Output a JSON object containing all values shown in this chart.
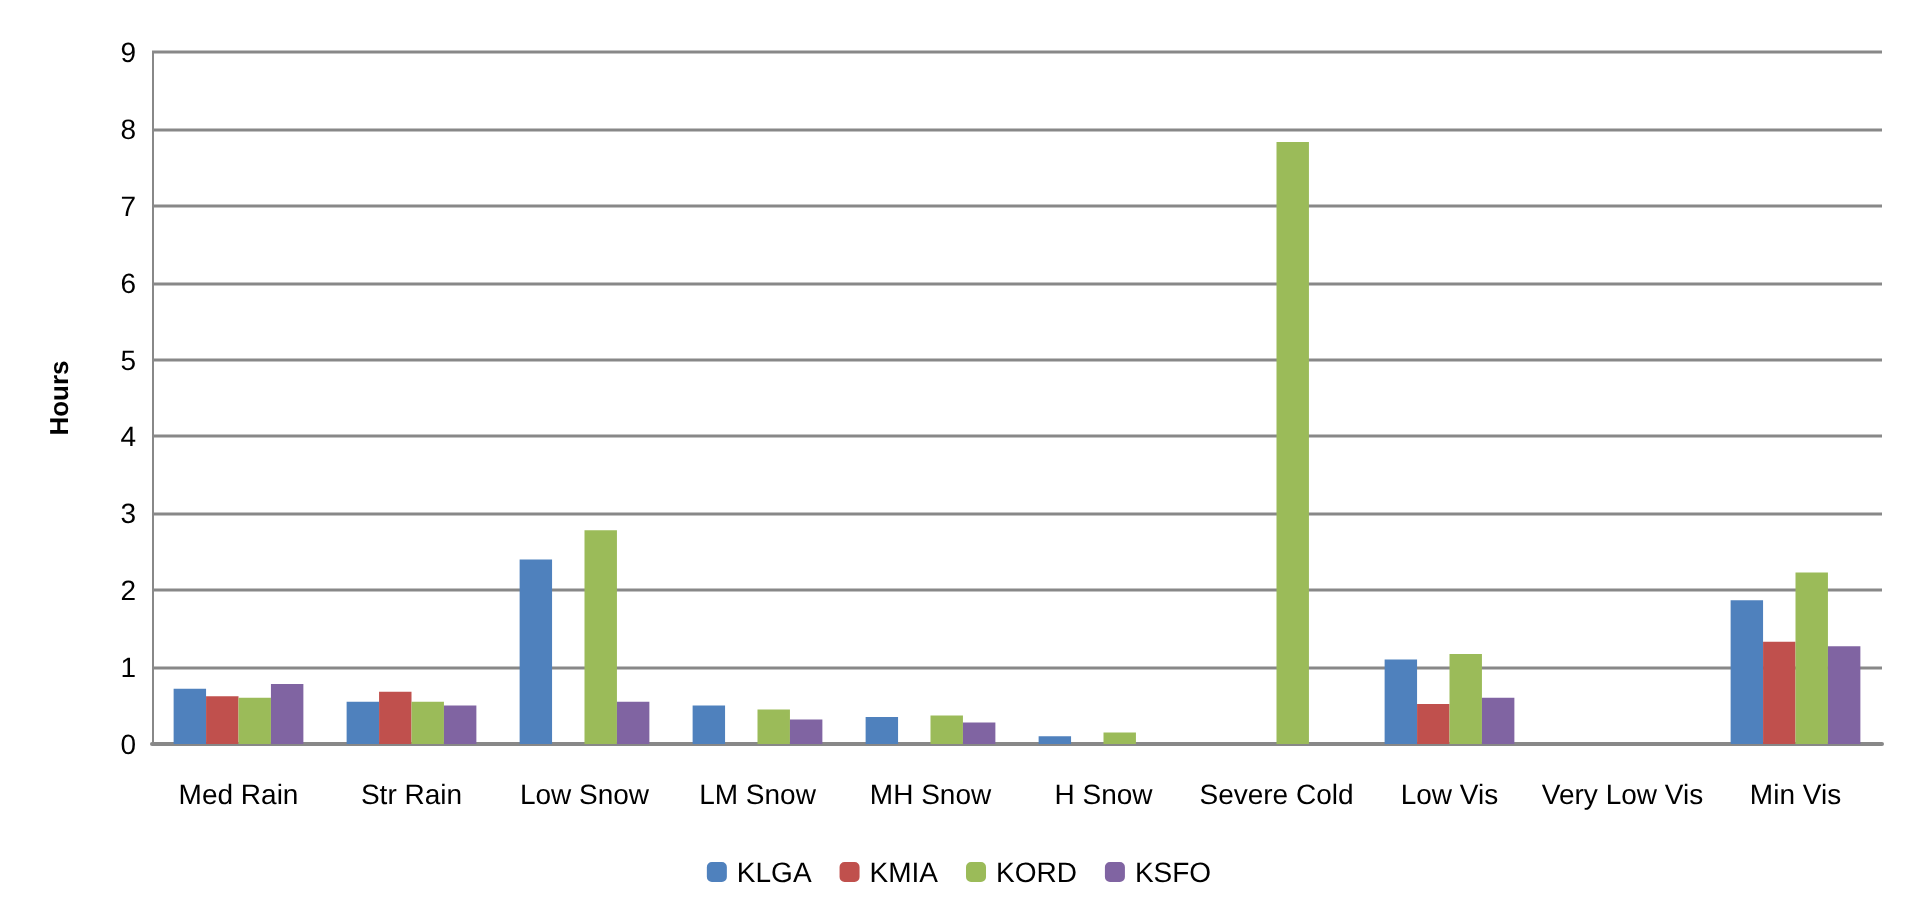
{
  "chart_data": {
    "type": "bar",
    "ylabel": "Hours",
    "categories": [
      "Med Rain",
      "Str Rain",
      "Low Snow",
      "LM Snow",
      "MH Snow",
      "H Snow",
      "Severe Cold",
      "Low Vis",
      "Very Low Vis",
      "Min Vis"
    ],
    "series": [
      {
        "name": "KLGA",
        "color": "#4f81bd",
        "values": [
          0.72,
          0.55,
          2.4,
          0.5,
          0.35,
          0.1,
          0,
          1.1,
          0,
          1.87
        ]
      },
      {
        "name": "KMIA",
        "color": "#c0504d",
        "values": [
          0.62,
          0.68,
          0,
          0,
          0,
          0,
          0,
          0.52,
          0,
          1.33
        ]
      },
      {
        "name": "KORD",
        "color": "#9bbb59",
        "values": [
          0.6,
          0.55,
          2.78,
          0.45,
          0.37,
          0.15,
          7.83,
          1.17,
          0,
          2.23
        ]
      },
      {
        "name": "KSFO",
        "color": "#8064a2",
        "values": [
          0.78,
          0.5,
          0.55,
          0.32,
          0.28,
          0,
          0,
          0.6,
          0,
          1.27
        ]
      }
    ],
    "ylim": [
      0,
      9
    ],
    "yticks": [
      0,
      1,
      2,
      3,
      4,
      5,
      6,
      7,
      8,
      9
    ],
    "grid": "y",
    "legend": "bottom"
  }
}
